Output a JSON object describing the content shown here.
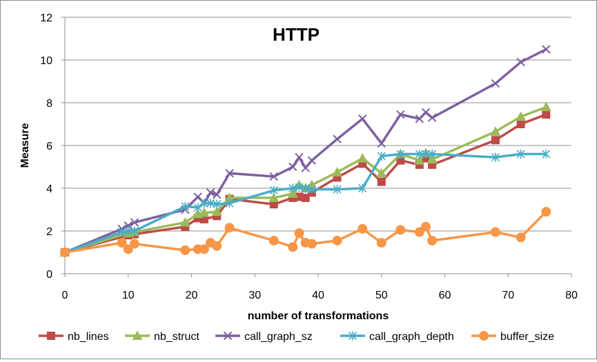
{
  "chart_data": {
    "type": "line",
    "title": "HTTP",
    "xlabel": "number of transformations",
    "ylabel": "Measure",
    "xlim": [
      0,
      80
    ],
    "ylim": [
      0,
      12
    ],
    "x_ticks": [
      "0",
      "10",
      "20",
      "30",
      "40",
      "50",
      "60",
      "70",
      "80"
    ],
    "y_ticks": [
      "0",
      "2",
      "4",
      "6",
      "8",
      "10",
      "12"
    ],
    "grid": "horizontal major",
    "legend_position": "bottom",
    "series": [
      {
        "name": "nb_lines",
        "color": "#be4b48",
        "marker": "square",
        "points": [
          [
            0,
            1.0
          ],
          [
            10,
            1.8
          ],
          [
            11,
            1.85
          ],
          [
            19,
            2.2
          ],
          [
            21,
            2.6
          ],
          [
            22,
            2.55
          ],
          [
            24,
            2.7
          ],
          [
            26,
            3.5
          ],
          [
            33,
            3.25
          ],
          [
            36,
            3.55
          ],
          [
            37,
            3.6
          ],
          [
            38,
            3.55
          ],
          [
            39,
            3.8
          ],
          [
            43,
            4.5
          ],
          [
            47,
            5.15
          ],
          [
            50,
            4.3
          ],
          [
            53,
            5.3
          ],
          [
            56,
            5.1
          ],
          [
            57,
            5.4
          ],
          [
            58,
            5.1
          ],
          [
            68,
            6.25
          ],
          [
            72,
            7.0
          ],
          [
            76,
            7.45
          ]
        ]
      },
      {
        "name": "nb_struct",
        "color": "#9bbb59",
        "marker": "triangle",
        "points": [
          [
            0,
            1.0
          ],
          [
            10,
            1.9
          ],
          [
            11,
            1.95
          ],
          [
            19,
            2.4
          ],
          [
            21,
            2.8
          ],
          [
            22,
            2.85
          ],
          [
            24,
            2.9
          ],
          [
            26,
            3.55
          ],
          [
            33,
            3.55
          ],
          [
            36,
            3.75
          ],
          [
            37,
            4.15
          ],
          [
            38,
            4.0
          ],
          [
            39,
            4.15
          ],
          [
            43,
            4.75
          ],
          [
            47,
            5.4
          ],
          [
            50,
            4.7
          ],
          [
            53,
            5.6
          ],
          [
            56,
            5.3
          ],
          [
            57,
            5.65
          ],
          [
            58,
            5.35
          ],
          [
            68,
            6.65
          ],
          [
            72,
            7.35
          ],
          [
            76,
            7.8
          ]
        ]
      },
      {
        "name": "call_graph_sz",
        "color": "#7d60a0",
        "marker": "x",
        "points": [
          [
            0,
            1.0
          ],
          [
            9,
            2.1
          ],
          [
            10,
            2.25
          ],
          [
            11,
            2.4
          ],
          [
            19,
            3.0
          ],
          [
            21,
            3.6
          ],
          [
            22,
            3.3
          ],
          [
            23,
            3.8
          ],
          [
            24,
            3.7
          ],
          [
            26,
            4.7
          ],
          [
            33,
            4.55
          ],
          [
            36,
            5.0
          ],
          [
            37,
            5.45
          ],
          [
            38,
            4.95
          ],
          [
            39,
            5.3
          ],
          [
            43,
            6.3
          ],
          [
            47,
            7.25
          ],
          [
            50,
            6.1
          ],
          [
            53,
            7.45
          ],
          [
            56,
            7.25
          ],
          [
            57,
            7.55
          ],
          [
            58,
            7.3
          ],
          [
            68,
            8.9
          ],
          [
            72,
            9.9
          ],
          [
            76,
            10.5
          ]
        ]
      },
      {
        "name": "call_graph_depth",
        "color": "#4bacc6",
        "marker": "star",
        "points": [
          [
            0,
            1.0
          ],
          [
            9,
            1.95
          ],
          [
            10,
            2.0
          ],
          [
            11,
            2.0
          ],
          [
            19,
            3.15
          ],
          [
            21,
            3.1
          ],
          [
            22,
            3.3
          ],
          [
            23,
            3.3
          ],
          [
            24,
            3.25
          ],
          [
            26,
            3.3
          ],
          [
            33,
            3.9
          ],
          [
            36,
            4.0
          ],
          [
            37,
            4.05
          ],
          [
            38,
            4.0
          ],
          [
            39,
            3.95
          ],
          [
            43,
            3.95
          ],
          [
            47,
            4.0
          ],
          [
            50,
            5.5
          ],
          [
            53,
            5.6
          ],
          [
            56,
            5.6
          ],
          [
            57,
            5.6
          ],
          [
            58,
            5.6
          ],
          [
            68,
            5.45
          ],
          [
            72,
            5.6
          ],
          [
            76,
            5.6
          ]
        ]
      },
      {
        "name": "buffer_size",
        "color": "#f79646",
        "marker": "circle",
        "points": [
          [
            0,
            1.0
          ],
          [
            9,
            1.45
          ],
          [
            10,
            1.15
          ],
          [
            11,
            1.4
          ],
          [
            19,
            1.1
          ],
          [
            21,
            1.15
          ],
          [
            22,
            1.15
          ],
          [
            23,
            1.45
          ],
          [
            24,
            1.3
          ],
          [
            26,
            2.15
          ],
          [
            33,
            1.55
          ],
          [
            36,
            1.25
          ],
          [
            37,
            1.9
          ],
          [
            38,
            1.45
          ],
          [
            39,
            1.4
          ],
          [
            43,
            1.55
          ],
          [
            47,
            2.1
          ],
          [
            50,
            1.45
          ],
          [
            53,
            2.05
          ],
          [
            56,
            1.95
          ],
          [
            57,
            2.2
          ],
          [
            58,
            1.55
          ],
          [
            68,
            1.95
          ],
          [
            72,
            1.7
          ],
          [
            76,
            2.9
          ]
        ]
      }
    ]
  }
}
